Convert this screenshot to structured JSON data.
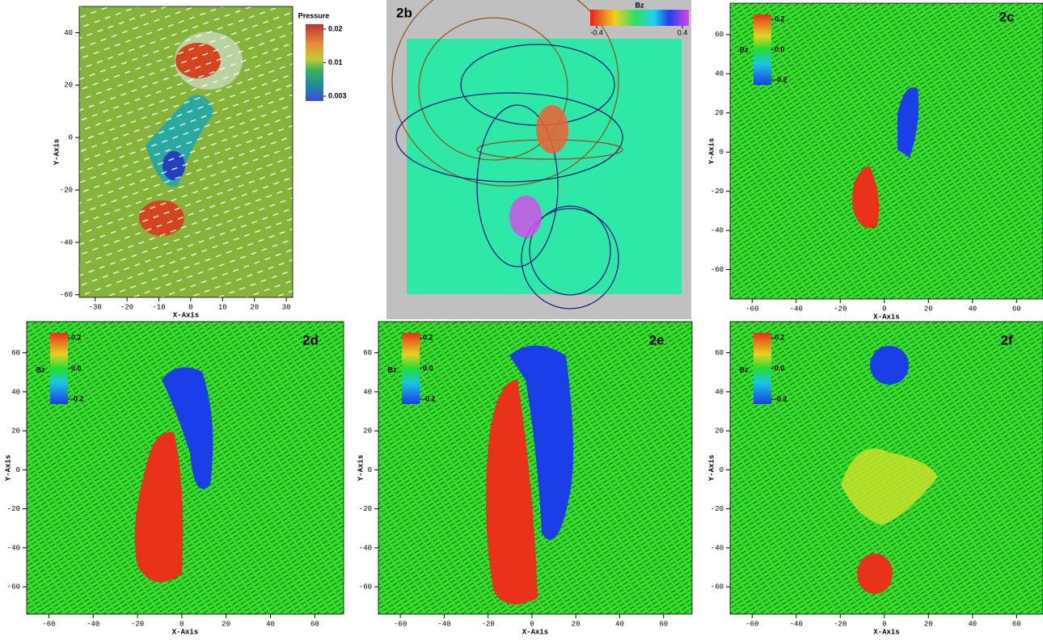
{
  "chart_data": [
    {
      "type": "vector-field",
      "xlabel": "X-Axis",
      "ylabel": "Y-Axis",
      "xlim": [
        -35,
        32
      ],
      "ylim": [
        -61,
        50
      ],
      "xticks": [
        -30,
        -20,
        -10,
        0,
        10,
        20,
        30
      ],
      "yticks": [
        -60,
        -40,
        -20,
        0,
        20,
        40
      ],
      "colorbar": {
        "title": "Pressure",
        "ticks": [
          0.02,
          0.01,
          0.003
        ]
      }
    },
    {
      "type": "3d-render",
      "title": "2b",
      "colorbar": {
        "title": "Bz",
        "ticks": [
          -0.4,
          0.4
        ]
      }
    },
    {
      "type": "vector-field",
      "title": "2c",
      "xlabel": "X-Axis",
      "ylabel": "Y-Axis",
      "xlim": [
        -70,
        72
      ],
      "ylim": [
        -75,
        76
      ],
      "xticks": [
        -60,
        -40,
        -20,
        0,
        20,
        40,
        60
      ],
      "yticks": [
        -60,
        -40,
        -20,
        0,
        20,
        40,
        60
      ],
      "colorbar": {
        "title": "Bz",
        "ticks": [
          0.2,
          {
            "value": 0,
            "label": "0.0"
          },
          -0.2
        ]
      }
    },
    {
      "type": "vector-field",
      "title": "2d",
      "xlabel": "X-Axis",
      "ylabel": "Y-Axis",
      "xlim": [
        -70,
        73
      ],
      "ylim": [
        -74,
        76
      ],
      "xticks": [
        -60,
        -40,
        -20,
        0,
        20,
        40,
        60
      ],
      "yticks": [
        -60,
        -40,
        -20,
        0,
        20,
        40,
        60
      ],
      "colorbar": {
        "title": "Bz",
        "ticks": [
          0.2,
          {
            "value": 0,
            "label": "0.0"
          },
          -0.2
        ]
      }
    },
    {
      "type": "vector-field",
      "title": "2e",
      "xlabel": "X-Axis",
      "ylabel": "Y-Axis",
      "xlim": [
        -70,
        73
      ],
      "ylim": [
        -74,
        76
      ],
      "xticks": [
        -60,
        -40,
        -20,
        0,
        20,
        40,
        60
      ],
      "yticks": [
        -60,
        -40,
        -20,
        0,
        20,
        40,
        60
      ],
      "colorbar": {
        "title": "Bz",
        "ticks": [
          0.2,
          {
            "value": 0,
            "label": "0.0"
          },
          -0.2
        ]
      }
    },
    {
      "type": "vector-field",
      "title": "2f",
      "xlabel": "X-Axis",
      "ylabel": "Y-Axis",
      "xlim": [
        -70,
        72
      ],
      "ylim": [
        -74,
        76
      ],
      "xticks": [
        -60,
        -40,
        -20,
        0,
        20,
        40,
        60
      ],
      "yticks": [
        -60,
        -40,
        -20,
        0,
        20,
        40,
        60
      ],
      "colorbar": {
        "title": "Bz",
        "ticks": [
          0.2,
          {
            "value": 0,
            "label": "0.0"
          },
          -0.2
        ]
      }
    }
  ]
}
